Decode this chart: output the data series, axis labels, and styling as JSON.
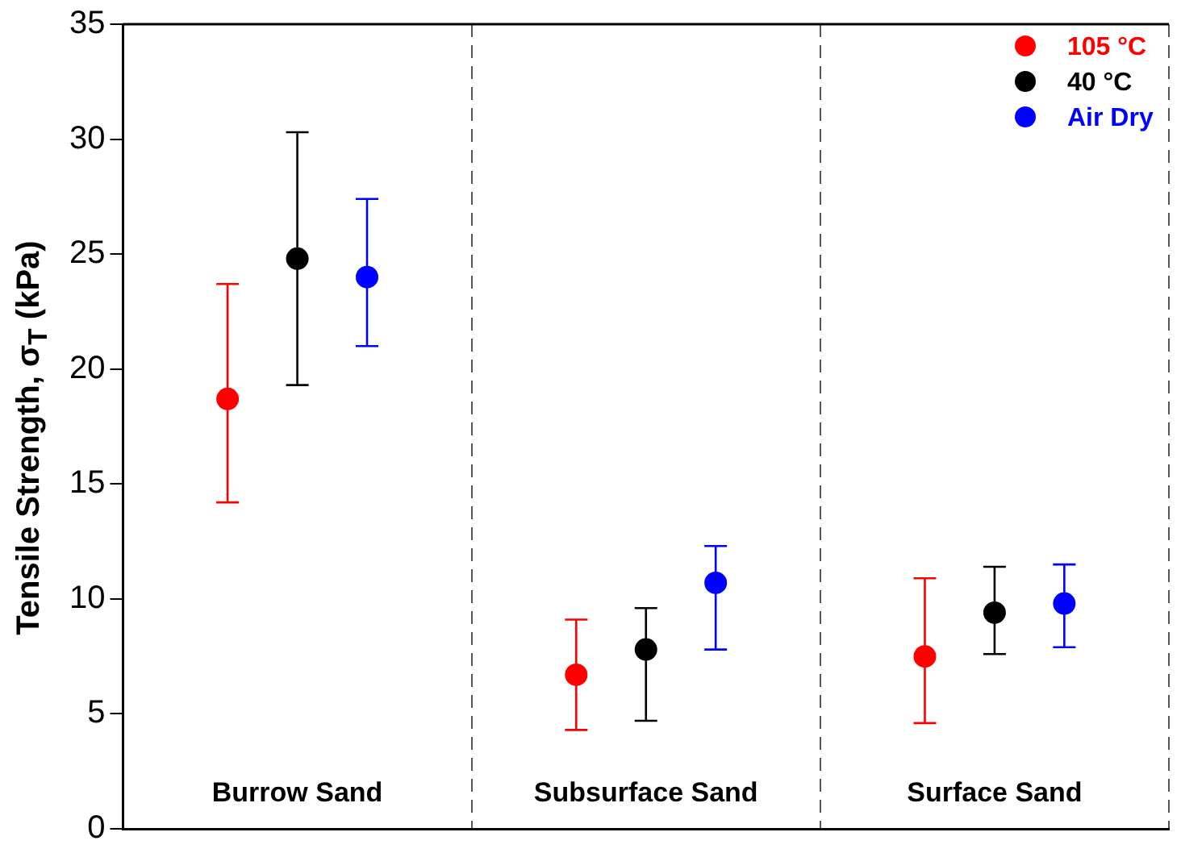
{
  "chart_data": {
    "type": "scatter",
    "ylabel": "Tensile Strength, σ$_{T}$ (kPa)",
    "categories": [
      "Burrow Sand",
      "Subsurface Sand",
      "Surface Sand"
    ],
    "series": [
      {
        "name": "105 °C",
        "color": "#ff0000",
        "values": [
          18.7,
          6.7,
          7.5
        ],
        "errors": [
          [
            14.2,
            23.7
          ],
          [
            4.3,
            9.1
          ],
          [
            4.6,
            10.9
          ]
        ]
      },
      {
        "name": "40 °C",
        "color": "#000000",
        "values": [
          24.8,
          7.8,
          9.4
        ],
        "errors": [
          [
            19.3,
            30.3
          ],
          [
            4.7,
            9.6
          ],
          [
            7.6,
            11.4
          ]
        ]
      },
      {
        "name": "Air Dry",
        "color": "#0000ff",
        "values": [
          24.0,
          10.7,
          9.8
        ],
        "errors": [
          [
            21.0,
            27.4
          ],
          [
            7.8,
            12.3
          ],
          [
            7.9,
            11.5
          ]
        ]
      }
    ],
    "ylim": [
      0,
      35
    ],
    "yticks": [
      0,
      5,
      10,
      15,
      20,
      25,
      30,
      35
    ],
    "grid": "x",
    "legend": "top right",
    "marker": "circle"
  }
}
